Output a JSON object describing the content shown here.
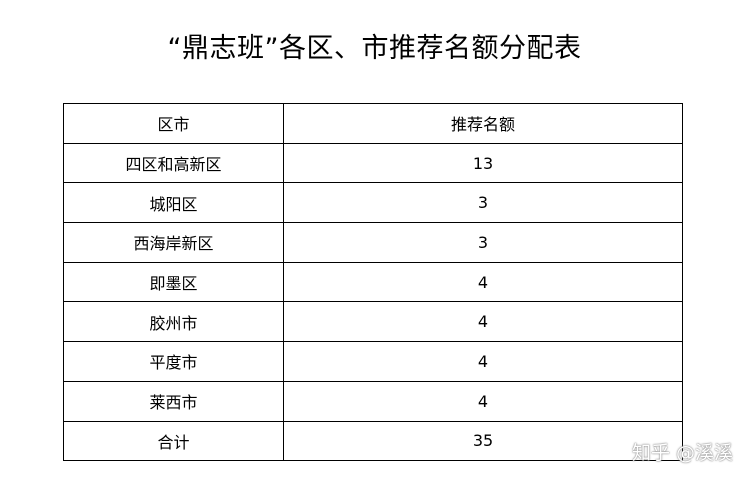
{
  "title": "“鼎志班”各区、市推荐名额分配表",
  "table": {
    "headers": [
      "区市",
      "推荐名额"
    ],
    "rows": [
      [
        "四区和高新区",
        "13"
      ],
      [
        "城阳区",
        "3"
      ],
      [
        "西海岸新区",
        "3"
      ],
      [
        "即墨区",
        "4"
      ],
      [
        "胶州市",
        "4"
      ],
      [
        "平度市",
        "4"
      ],
      [
        "莱西市",
        "4"
      ],
      [
        "合计",
        "35"
      ]
    ]
  },
  "watermark": "知乎 @溪溪"
}
